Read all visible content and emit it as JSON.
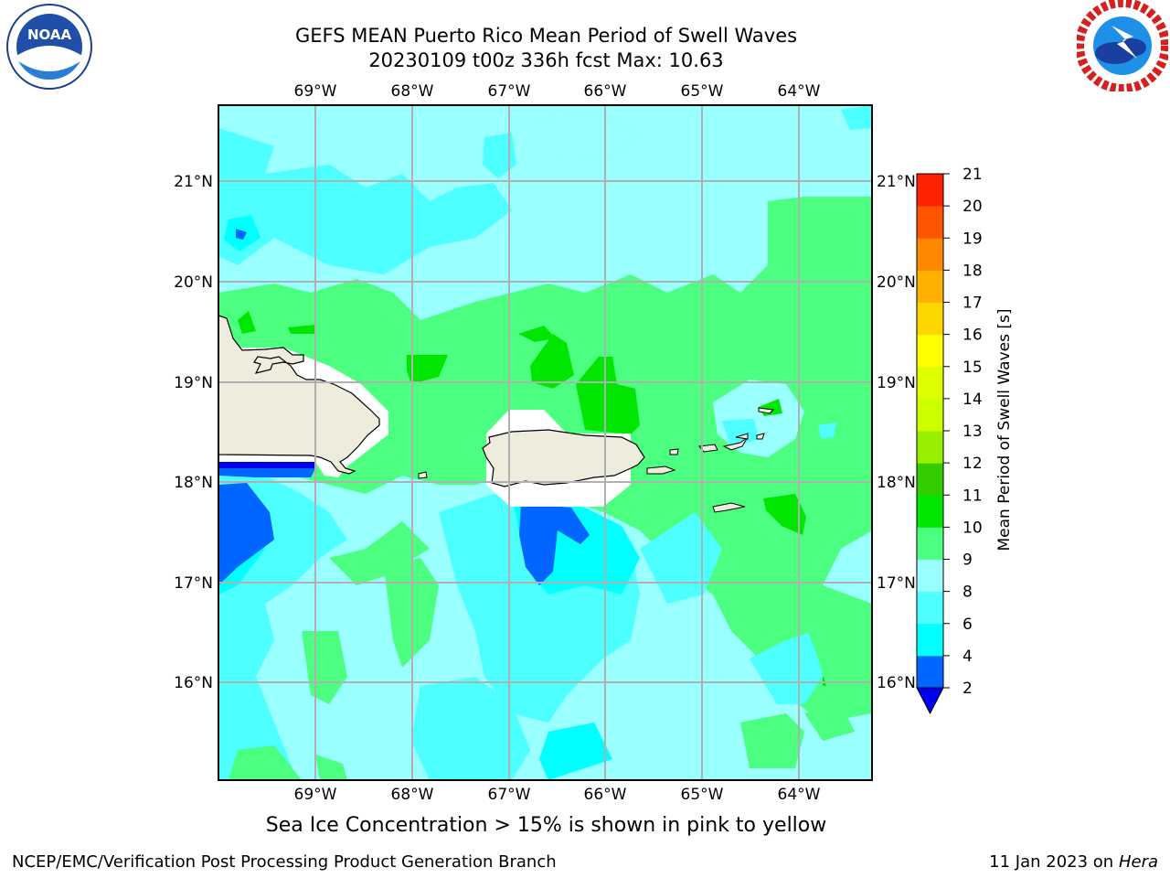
{
  "header": {
    "title_line1": "GEFS MEAN Puerto Rico Mean Period of Swell Waves",
    "title_line2": "20230109 t00z 336h fcst   Max: 10.63"
  },
  "logos": {
    "left": {
      "name": "NOAA",
      "text": "NOAA"
    },
    "right": {
      "name": "National Weather Service"
    }
  },
  "map": {
    "lon_labels": [
      "69°W",
      "68°W",
      "67°W",
      "66°W",
      "65°W",
      "64°W"
    ],
    "lat_labels": [
      "21°N",
      "20°N",
      "19°N",
      "18°N",
      "17°N",
      "16°N"
    ],
    "land_color": "#eeecdc",
    "grid_color": "#b0b0b0"
  },
  "colorbar": {
    "label": "Mean Period of Swell Waves [s]",
    "ticks": [
      "2",
      "4",
      "6",
      "8",
      "9",
      "10",
      "11",
      "12",
      "13",
      "14",
      "15",
      "16",
      "17",
      "18",
      "19",
      "20",
      "21"
    ],
    "colors": [
      "#0066ff",
      "#00ffff",
      "#4dffff",
      "#99ffff",
      "#4dff80",
      "#00e600",
      "#33cc00",
      "#99ee00",
      "#ccff00",
      "#ddff00",
      "#ffff00",
      "#ffd700",
      "#ffb000",
      "#ff8800",
      "#ff5500",
      "#ff2200",
      "#ff0000"
    ],
    "under_color": "#0000ee"
  },
  "footer": {
    "subtitle": "Sea Ice Concentration > 15% is shown in pink to yellow",
    "left": "NCEP/EMC/Verification Post Processing Product Generation Branch",
    "right_prefix": "11 Jan 2023 on ",
    "right_host": "Hera"
  }
}
